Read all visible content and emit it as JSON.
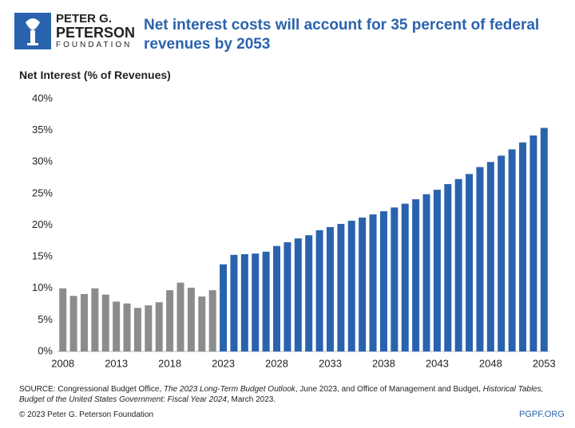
{
  "logo": {
    "line1": "PETER G.",
    "line2": "PETERSON",
    "line3": "FOUNDATION"
  },
  "chart_data": {
    "type": "bar",
    "title": "Net interest costs will account for 35 percent of federal revenues by 2053",
    "y_label": "Net Interest (% of Revenues)",
    "categories": [
      "2008",
      null,
      null,
      null,
      null,
      "2013",
      null,
      null,
      null,
      null,
      "2018",
      null,
      null,
      null,
      null,
      "2023",
      null,
      null,
      null,
      null,
      "2028",
      null,
      null,
      null,
      null,
      "2033",
      null,
      null,
      null,
      null,
      "2038",
      null,
      null,
      null,
      null,
      "2043",
      null,
      null,
      null,
      null,
      "2048",
      null,
      null,
      null,
      null,
      "2053"
    ],
    "values": [
      10.0,
      8.8,
      9.1,
      10.0,
      9.0,
      7.9,
      7.6,
      6.9,
      7.3,
      7.8,
      9.7,
      10.9,
      10.1,
      8.7,
      9.7,
      13.8,
      15.3,
      15.4,
      15.5,
      15.8,
      16.7,
      17.3,
      17.9,
      18.4,
      19.2,
      19.7,
      20.2,
      20.7,
      21.2,
      21.7,
      22.2,
      22.8,
      23.4,
      24.1,
      24.9,
      25.6,
      26.5,
      27.3,
      28.1,
      29.2,
      30.0,
      31.0,
      32.0,
      33.1,
      34.2,
      35.4
    ],
    "colors": [
      "#8c8c8c",
      "#8c8c8c",
      "#8c8c8c",
      "#8c8c8c",
      "#8c8c8c",
      "#8c8c8c",
      "#8c8c8c",
      "#8c8c8c",
      "#8c8c8c",
      "#8c8c8c",
      "#8c8c8c",
      "#8c8c8c",
      "#8c8c8c",
      "#8c8c8c",
      "#8c8c8c",
      "#2a63ad",
      "#2a63ad",
      "#2a63ad",
      "#2a63ad",
      "#2a63ad",
      "#2a63ad",
      "#2a63ad",
      "#2a63ad",
      "#2a63ad",
      "#2a63ad",
      "#2a63ad",
      "#2a63ad",
      "#2a63ad",
      "#2a63ad",
      "#2a63ad",
      "#2a63ad",
      "#2a63ad",
      "#2a63ad",
      "#2a63ad",
      "#2a63ad",
      "#2a63ad",
      "#2a63ad",
      "#2a63ad",
      "#2a63ad",
      "#2a63ad",
      "#2a63ad",
      "#2a63ad",
      "#2a63ad",
      "#2a63ad",
      "#2a63ad",
      "#2a63ad"
    ],
    "ylim": [
      0,
      40
    ],
    "yticks": [
      {
        "value": 0,
        "label": "0%"
      },
      {
        "value": 5,
        "label": "5%"
      },
      {
        "value": 10,
        "label": "10%"
      },
      {
        "value": 15,
        "label": "15%"
      },
      {
        "value": 20,
        "label": "20%"
      },
      {
        "value": 25,
        "label": "25%"
      },
      {
        "value": 30,
        "label": "30%"
      },
      {
        "value": 35,
        "label": "35%"
      },
      {
        "value": 40,
        "label": "40%"
      }
    ],
    "grid": false,
    "source": [
      {
        "text": "SOURCE: Congressional Budget Office, ",
        "italic": false
      },
      {
        "text": "The 2023 Long-Term Budget Outlook",
        "italic": true
      },
      {
        "text": ", June 2023, and Office of Management and Budget, ",
        "italic": false
      },
      {
        "text": "Historical Tables, Budget of the United States Government: Fiscal Year 2024",
        "italic": true
      },
      {
        "text": ", March 2023.",
        "italic": false
      }
    ],
    "copyright": "© 2023 Peter G. Peterson Foundation",
    "site": "PGPF.ORG"
  }
}
